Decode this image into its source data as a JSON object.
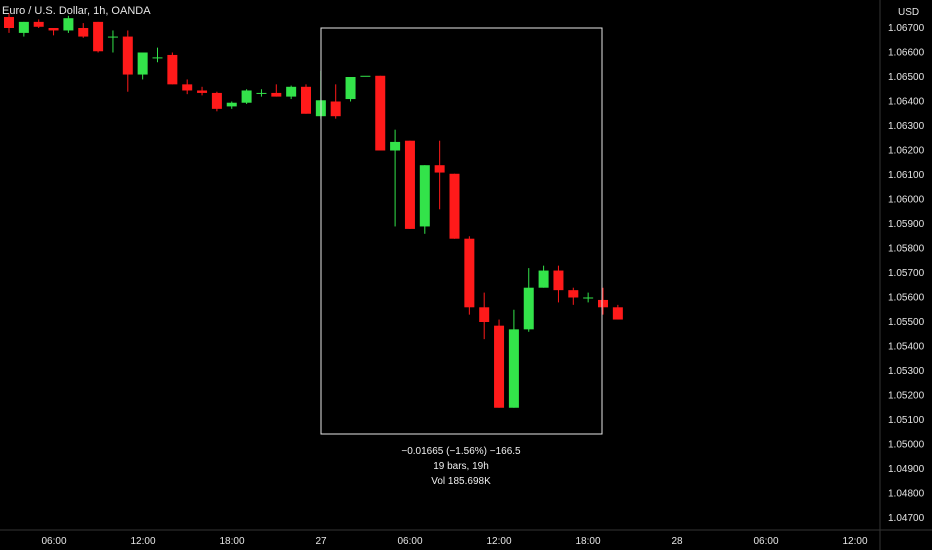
{
  "chart_data": {
    "type": "candlestick",
    "title": "Euro / U.S. Dollar, 1h, OANDA",
    "currency": "USD",
    "y_ticks": [
      "1.06700",
      "1.06600",
      "1.06500",
      "1.06400",
      "1.06300",
      "1.06200",
      "1.06100",
      "1.06000",
      "1.05900",
      "1.05800",
      "1.05700",
      "1.05600",
      "1.05500",
      "1.05400",
      "1.05300",
      "1.05200",
      "1.05100",
      "1.05000",
      "1.04900",
      "1.04800",
      "1.04700"
    ],
    "ylim": [
      1.0466,
      1.068
    ],
    "x_ticks": [
      "06:00",
      "12:00",
      "18:00",
      "27",
      "06:00",
      "12:00",
      "18:00",
      "28",
      "06:00",
      "12:00"
    ],
    "colors": {
      "up": "#33e34a",
      "down": "#ff1a1a",
      "box": "#e6e6e6",
      "background": "#000000"
    },
    "candles": [
      {
        "o": 1.06745,
        "h": 1.0676,
        "l": 1.0668,
        "c": 1.067
      },
      {
        "o": 1.0668,
        "h": 1.06725,
        "l": 1.06665,
        "c": 1.06725
      },
      {
        "o": 1.06725,
        "h": 1.06735,
        "l": 1.067,
        "c": 1.06705
      },
      {
        "o": 1.067,
        "h": 1.067,
        "l": 1.0667,
        "c": 1.0669
      },
      {
        "o": 1.0669,
        "h": 1.0675,
        "l": 1.0668,
        "c": 1.0674
      },
      {
        "o": 1.067,
        "h": 1.0672,
        "l": 1.0666,
        "c": 1.06665
      },
      {
        "o": 1.06725,
        "h": 1.06725,
        "l": 1.066,
        "c": 1.06605
      },
      {
        "o": 1.06665,
        "h": 1.0669,
        "l": 1.066,
        "c": 1.06665
      },
      {
        "o": 1.06665,
        "h": 1.0669,
        "l": 1.0644,
        "c": 1.0651
      },
      {
        "o": 1.0651,
        "h": 1.0659,
        "l": 1.0649,
        "c": 1.066
      },
      {
        "o": 1.0658,
        "h": 1.0662,
        "l": 1.0656,
        "c": 1.0658
      },
      {
        "o": 1.0659,
        "h": 1.066,
        "l": 1.0647,
        "c": 1.0647
      },
      {
        "o": 1.0647,
        "h": 1.0649,
        "l": 1.0643,
        "c": 1.06445
      },
      {
        "o": 1.06445,
        "h": 1.0646,
        "l": 1.06425,
        "c": 1.06435
      },
      {
        "o": 1.06435,
        "h": 1.0644,
        "l": 1.0636,
        "c": 1.0637
      },
      {
        "o": 1.0638,
        "h": 1.064,
        "l": 1.0637,
        "c": 1.06395
      },
      {
        "o": 1.06395,
        "h": 1.0645,
        "l": 1.0639,
        "c": 1.06445
      },
      {
        "o": 1.06435,
        "h": 1.0645,
        "l": 1.0642,
        "c": 1.06435
      },
      {
        "o": 1.06435,
        "h": 1.0647,
        "l": 1.0643,
        "c": 1.0642
      },
      {
        "o": 1.0642,
        "h": 1.06465,
        "l": 1.0641,
        "c": 1.0646
      },
      {
        "o": 1.0646,
        "h": 1.0647,
        "l": 1.0635,
        "c": 1.0635
      },
      {
        "o": 1.0634,
        "h": 1.06525,
        "l": 1.0633,
        "c": 1.06405
      },
      {
        "o": 1.064,
        "h": 1.0647,
        "l": 1.0633,
        "c": 1.0634
      },
      {
        "o": 1.0641,
        "h": 1.065,
        "l": 1.064,
        "c": 1.065
      },
      {
        "o": 1.06505,
        "h": 1.06505,
        "l": 1.06505,
        "c": 1.06505
      },
      {
        "o": 1.06505,
        "h": 1.065,
        "l": 1.062,
        "c": 1.062
      },
      {
        "o": 1.062,
        "h": 1.06285,
        "l": 1.0589,
        "c": 1.06235
      },
      {
        "o": 1.0624,
        "h": 1.0624,
        "l": 1.0588,
        "c": 1.0588
      },
      {
        "o": 1.0589,
        "h": 1.0614,
        "l": 1.0586,
        "c": 1.0614
      },
      {
        "o": 1.0614,
        "h": 1.0624,
        "l": 1.0596,
        "c": 1.0611
      },
      {
        "o": 1.06105,
        "h": 1.06105,
        "l": 1.0584,
        "c": 1.0584
      },
      {
        "o": 1.0584,
        "h": 1.0585,
        "l": 1.0553,
        "c": 1.0556
      },
      {
        "o": 1.0556,
        "h": 1.0562,
        "l": 1.0543,
        "c": 1.055
      },
      {
        "o": 1.05485,
        "h": 1.0551,
        "l": 1.0515,
        "c": 1.0515
      },
      {
        "o": 1.0515,
        "h": 1.0555,
        "l": 1.0515,
        "c": 1.0547
      },
      {
        "o": 1.0547,
        "h": 1.0572,
        "l": 1.0546,
        "c": 1.0564
      },
      {
        "o": 1.0564,
        "h": 1.0573,
        "l": 1.0564,
        "c": 1.0571
      },
      {
        "o": 1.0571,
        "h": 1.0573,
        "l": 1.0558,
        "c": 1.0563
      },
      {
        "o": 1.0563,
        "h": 1.0564,
        "l": 1.0557,
        "c": 1.056
      },
      {
        "o": 1.056,
        "h": 1.0562,
        "l": 1.0558,
        "c": 1.056
      },
      {
        "o": 1.0559,
        "h": 1.0564,
        "l": 1.0553,
        "c": 1.0556
      },
      {
        "o": 1.0556,
        "h": 1.0557,
        "l": 1.0551,
        "c": 1.0551
      }
    ],
    "measure": {
      "change": "−0.01665 (−1.56%) −166.5",
      "bars": "19 bars, 19h",
      "volume": "Vol 185.698K"
    }
  }
}
